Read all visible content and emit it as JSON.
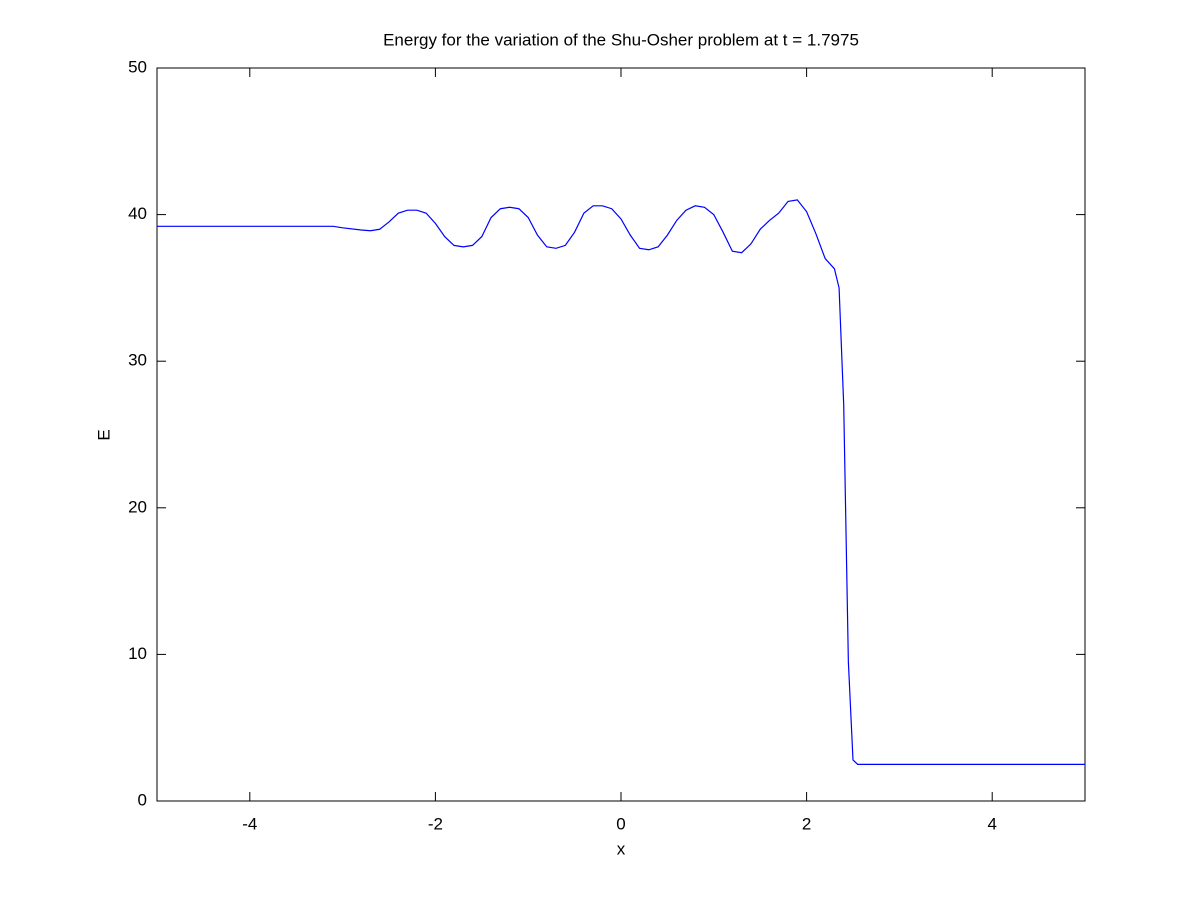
{
  "chart_data": {
    "type": "line",
    "title": "Energy for the variation of the Shu-Osher problem at t = 1.7975",
    "x_label": "x",
    "y_label": "E",
    "x": [
      -5,
      -4,
      -3.1,
      -3,
      -2.8,
      -2.7,
      -2.6,
      -2.5,
      -2.4,
      -2.3,
      -2.2,
      -2.1,
      -2.0,
      -1.9,
      -1.8,
      -1.7,
      -1.6,
      -1.5,
      -1.4,
      -1.3,
      -1.2,
      -1.1,
      -1.0,
      -0.9,
      -0.8,
      -0.7,
      -0.6,
      -0.5,
      -0.4,
      -0.3,
      -0.2,
      -0.1,
      0.0,
      0.1,
      0.2,
      0.3,
      0.4,
      0.5,
      0.6,
      0.7,
      0.8,
      0.9,
      1.0,
      1.1,
      1.2,
      1.3,
      1.4,
      1.5,
      1.6,
      1.7,
      1.8,
      1.9,
      2.0,
      2.1,
      2.2,
      2.3,
      2.35,
      2.4,
      2.45,
      2.5,
      2.55,
      3.5,
      5
    ],
    "values": [
      39.2,
      39.2,
      39.2,
      39.1,
      38.95,
      38.9,
      39.0,
      39.5,
      40.1,
      40.3,
      40.3,
      40.1,
      39.4,
      38.5,
      37.9,
      37.8,
      37.9,
      38.5,
      39.8,
      40.4,
      40.5,
      40.4,
      39.8,
      38.6,
      37.8,
      37.7,
      37.9,
      38.8,
      40.1,
      40.6,
      40.6,
      40.4,
      39.7,
      38.6,
      37.7,
      37.6,
      37.8,
      38.6,
      39.6,
      40.3,
      40.6,
      40.5,
      40.0,
      38.8,
      37.5,
      37.4,
      38.0,
      39.0,
      39.6,
      40.1,
      40.9,
      41.0,
      40.2,
      38.7,
      37.0,
      36.3,
      35.0,
      27,
      9.5,
      2.8,
      2.5,
      2.5,
      2.5
    ],
    "color": "#0000ff",
    "xlim": [
      -5,
      5
    ],
    "xticks": [
      -4,
      -2,
      0,
      2,
      4
    ],
    "ylim": [
      0,
      50
    ],
    "yticks": [
      0,
      10,
      20,
      30,
      40,
      50
    ]
  }
}
